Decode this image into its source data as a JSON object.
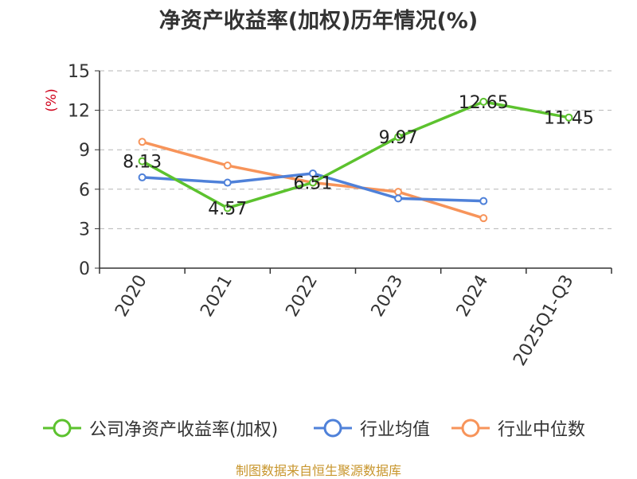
{
  "title": "净资产收益率(加权)历年情况(%)",
  "source": "制图数据来自恒生聚源数据库",
  "colors": {
    "company": "#5cc22e",
    "industry_avg": "#4f81d9",
    "industry_median": "#f7945a",
    "grid": "#b5b5b5",
    "axis": "#333333",
    "unit": "#d0021b"
  },
  "legend": [
    {
      "key": "company",
      "label": "公司净资产收益率(加权)"
    },
    {
      "key": "industry_avg",
      "label": "行业均值"
    },
    {
      "key": "industry_median",
      "label": "行业中位数"
    }
  ],
  "chart_data": {
    "type": "line",
    "title": "净资产收益率(加权)历年情况(%)",
    "ylabel": "(%)",
    "xlabel": "",
    "categories": [
      "2020",
      "2021",
      "2022",
      "2023",
      "2024",
      "2025Q1-Q3"
    ],
    "ylim": [
      0,
      15
    ],
    "yticks": [
      0,
      3,
      6,
      9,
      12,
      15
    ],
    "grid": true,
    "legend_position": "bottom",
    "series": [
      {
        "key": "company",
        "name": "公司净资产收益率(加权)",
        "color": "#5cc22e",
        "values": [
          8.13,
          4.57,
          6.51,
          9.97,
          12.65,
          11.45
        ],
        "labels": [
          "8.13",
          "4.57",
          "6.51",
          "9.97",
          "12.65",
          "11.45"
        ]
      },
      {
        "key": "industry_avg",
        "name": "行业均值",
        "color": "#4f81d9",
        "values": [
          6.9,
          6.5,
          7.2,
          5.3,
          5.1,
          null
        ]
      },
      {
        "key": "industry_median",
        "name": "行业中位数",
        "color": "#f7945a",
        "values": [
          9.6,
          7.8,
          6.5,
          5.8,
          3.8,
          null
        ]
      }
    ]
  }
}
